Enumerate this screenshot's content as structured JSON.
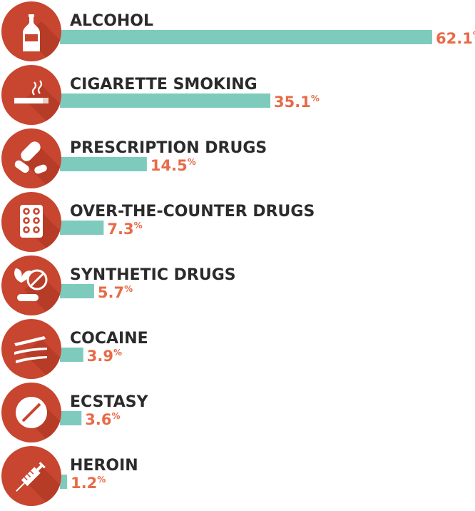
{
  "colors": {
    "bar": "#7ecbbd",
    "circle": "#c8452f",
    "shadow": "#a83522",
    "icon": "#ffffff",
    "label": "#2b2b2b",
    "value": "#e86a47"
  },
  "chart_data": {
    "type": "bar",
    "orientation": "horizontal",
    "title": "",
    "xlabel": "",
    "ylabel": "",
    "unit": "%",
    "xlim": [
      0,
      62.1
    ],
    "grid": false,
    "legend": "none",
    "categories": [
      "ALCOHOL",
      "CIGARETTE SMOKING",
      "PRESCRIPTION DRUGS",
      "OVER-THE-COUNTER DRUGS",
      "SYNTHETIC DRUGS",
      "COCAINE",
      "ECSTASY",
      "HEROIN"
    ],
    "values": [
      62.1,
      35.1,
      14.5,
      7.3,
      5.7,
      3.9,
      3.6,
      1.2
    ],
    "value_labels": [
      "62.1",
      "35.1",
      "14.5",
      "7.3",
      "5.7",
      "3.9",
      "3.6",
      "1.2"
    ],
    "icons": [
      "bottle-icon",
      "cigarette-icon",
      "pills-icon",
      "blister-pack-icon",
      "leaf-pill-icon",
      "cocaine-lines-icon",
      "tablet-icon",
      "syringe-icon"
    ]
  }
}
